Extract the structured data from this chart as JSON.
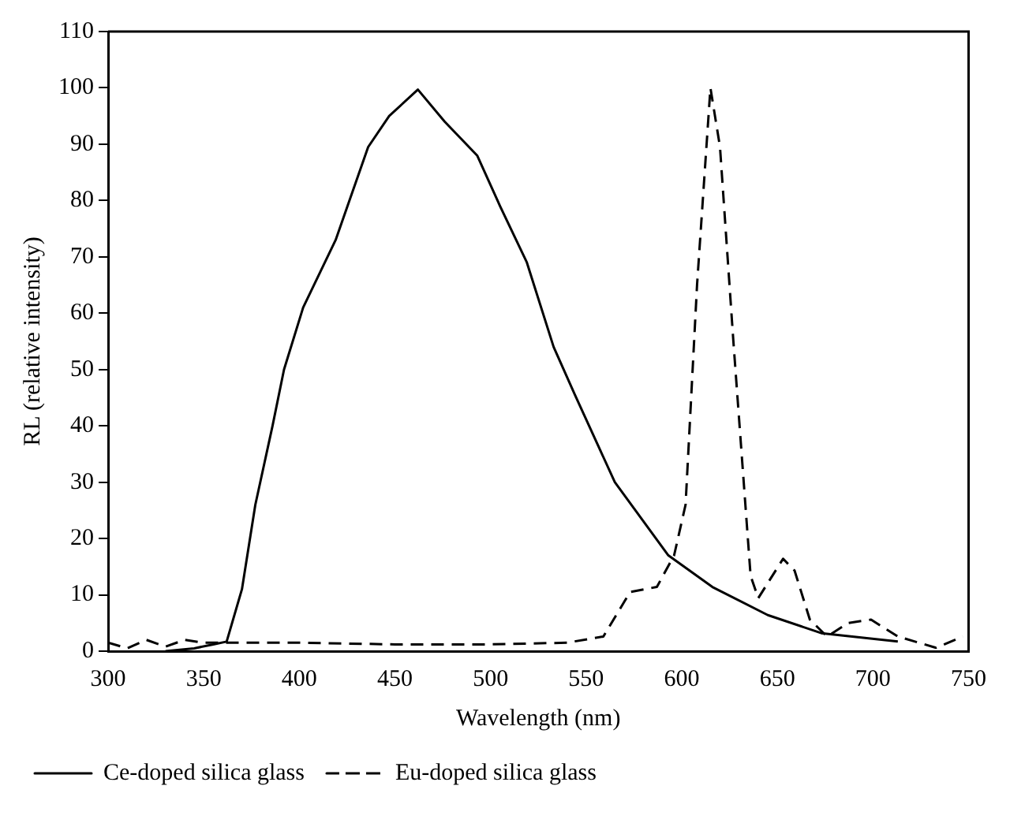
{
  "chart_data": {
    "type": "line",
    "xlabel": "Wavelength (nm)",
    "ylabel": "RL (relative intensity)",
    "xlim": [
      300,
      750
    ],
    "xticks": [
      300,
      350,
      400,
      450,
      500,
      550,
      600,
      650,
      700,
      750
    ],
    "ylim": [
      0,
      110
    ],
    "yticks": [
      0,
      10,
      20,
      30,
      40,
      50,
      60,
      70,
      80,
      90,
      100,
      110
    ],
    "grid": false,
    "legend": "bottom",
    "marker": "none",
    "series": [
      {
        "name": "Ce-doped silica glass",
        "color": "#000000",
        "line_style": "solid",
        "x": [
          330,
          345,
          355,
          362,
          370,
          377,
          386,
          392,
          402,
          419,
          436,
          447,
          462,
          476,
          493,
          505,
          519,
          533,
          544,
          565,
          593,
          616,
          645,
          673,
          713
        ],
        "values": [
          0,
          0.5,
          1.2,
          1.7,
          11,
          26,
          40,
          50,
          61,
          73,
          89.5,
          95,
          99.7,
          94,
          88,
          79,
          69,
          54,
          45.6,
          30,
          17,
          11.4,
          6.4,
          3.2,
          1.7
        ]
      },
      {
        "name": "Eu-doped silica glass",
        "color": "#000000",
        "line_style": "dashed",
        "x": [
          300,
          310,
          320,
          330,
          340,
          350,
          400,
          450,
          500,
          540,
          559,
          573,
          587,
          596,
          602,
          608,
          615,
          620,
          627,
          636,
          640,
          653,
          659,
          667,
          676,
          687,
          699,
          713,
          722,
          733,
          747
        ],
        "values": [
          1.5,
          0.5,
          2,
          0.8,
          2,
          1.5,
          1.5,
          1.2,
          1.2,
          1.5,
          2.6,
          10.5,
          11.4,
          17,
          26,
          65,
          100,
          89.5,
          55,
          13.4,
          9.4,
          16.4,
          14.3,
          5.6,
          2.6,
          5,
          5.6,
          2.6,
          1.7,
          0.6,
          2.6
        ]
      }
    ]
  }
}
